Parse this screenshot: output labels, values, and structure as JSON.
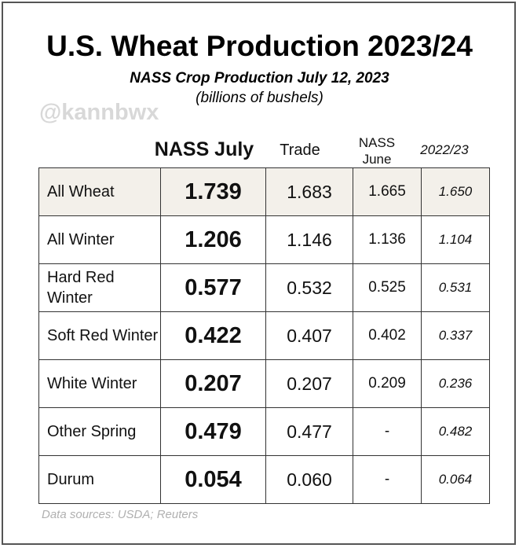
{
  "chart_data": {
    "type": "table",
    "title": "U.S. Wheat Production 2023/24",
    "subtitle": "NASS Crop Production July 12, 2023",
    "units": "(billions of bushels)",
    "watermark": "@kannbwx",
    "columns": [
      "",
      "NASS July",
      "Trade",
      "NASS June",
      "2022/23"
    ],
    "rows": [
      {
        "name": "All Wheat",
        "nass_july": "1.739",
        "trade": "1.683",
        "nass_june": "1.665",
        "prev": "1.650"
      },
      {
        "name": "All Winter",
        "nass_july": "1.206",
        "trade": "1.146",
        "nass_june": "1.136",
        "prev": "1.104"
      },
      {
        "name": "Hard Red Winter",
        "nass_july": "0.577",
        "trade": "0.532",
        "nass_june": "0.525",
        "prev": "0.531"
      },
      {
        "name": "Soft Red Winter",
        "nass_july": "0.422",
        "trade": "0.407",
        "nass_june": "0.402",
        "prev": "0.337"
      },
      {
        "name": "White Winter",
        "nass_july": "0.207",
        "trade": "0.207",
        "nass_june": "0.209",
        "prev": "0.236"
      },
      {
        "name": "Other Spring",
        "nass_july": "0.479",
        "trade": "0.477",
        "nass_june": "-",
        "prev": "0.482"
      },
      {
        "name": "Durum",
        "nass_july": "0.054",
        "trade": "0.060",
        "nass_june": "-",
        "prev": "0.064"
      }
    ],
    "highlight_color": "#f3f0ea",
    "source": "Data sources: USDA; Reuters"
  }
}
